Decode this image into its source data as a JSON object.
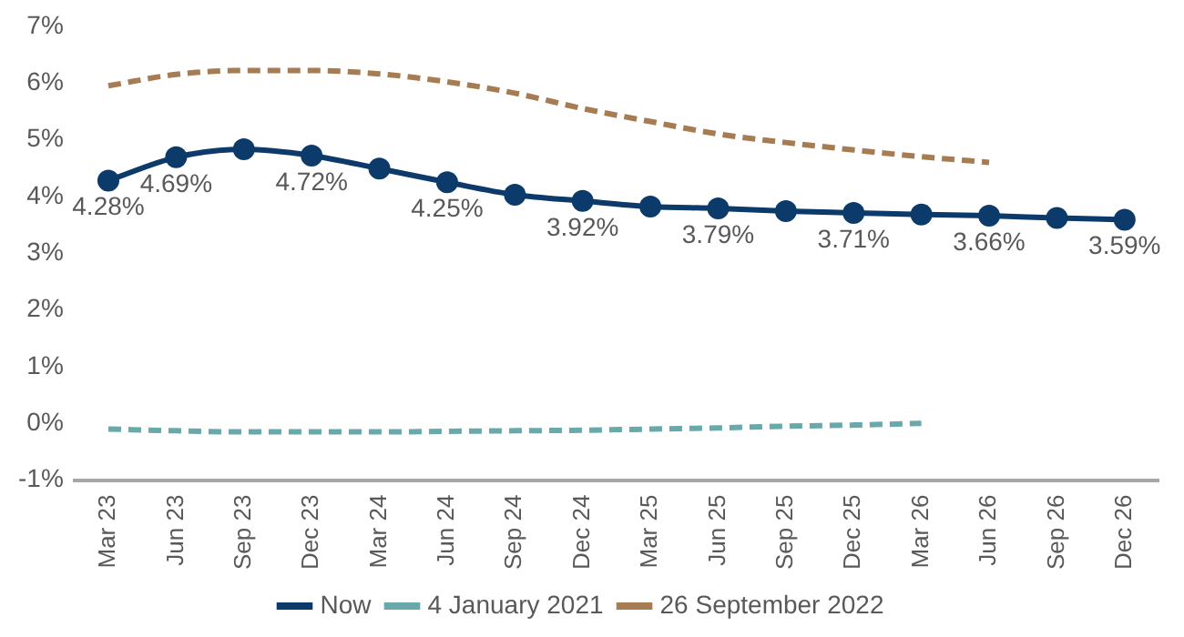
{
  "chart_data": {
    "type": "line",
    "categories": [
      "Mar 23",
      "Jun 23",
      "Sep 23",
      "Dec 23",
      "Mar 24",
      "Jun 24",
      "Sep 24",
      "Dec 24",
      "Mar 25",
      "Jun 25",
      "Sep 25",
      "Dec 25",
      "Mar 26",
      "Jun 26",
      "Sep 26",
      "Dec 26"
    ],
    "series": [
      {
        "name": "Now",
        "color": "#0b3a6b",
        "marker": "circle",
        "line_style": "solid",
        "values": [
          4.28,
          4.69,
          4.83,
          4.72,
          4.49,
          4.25,
          4.03,
          3.92,
          3.82,
          3.79,
          3.74,
          3.71,
          3.68,
          3.66,
          3.62,
          3.59
        ],
        "value_labels": [
          "4.28%",
          "4.69%",
          null,
          "4.72%",
          null,
          "4.25%",
          null,
          "3.92%",
          null,
          "3.79%",
          null,
          "3.71%",
          null,
          "3.66%",
          null,
          "3.59%"
        ]
      },
      {
        "name": "4 January 2021",
        "color": "#6aa9a9",
        "marker": "none",
        "line_style": "dashed",
        "values": [
          -0.1,
          -0.13,
          -0.15,
          -0.15,
          -0.15,
          -0.14,
          -0.13,
          -0.12,
          -0.1,
          -0.08,
          -0.05,
          -0.03,
          0.0,
          null,
          null,
          null
        ]
      },
      {
        "name": "26 September 2022",
        "color": "#a67c52",
        "marker": "none",
        "line_style": "dashed",
        "values": [
          5.95,
          6.15,
          6.22,
          6.22,
          6.16,
          6.02,
          5.82,
          5.55,
          5.32,
          5.1,
          4.95,
          4.82,
          4.7,
          4.6,
          null,
          null
        ]
      }
    ],
    "ylim": [
      -1,
      7
    ],
    "yticks": [
      {
        "value": -1,
        "label": "-1%"
      },
      {
        "value": 0,
        "label": "0%"
      },
      {
        "value": 1,
        "label": "1%"
      },
      {
        "value": 2,
        "label": "2%"
      },
      {
        "value": 3,
        "label": "3%"
      },
      {
        "value": 4,
        "label": "4%"
      },
      {
        "value": 5,
        "label": "5%"
      },
      {
        "value": 6,
        "label": "6%"
      },
      {
        "value": 7,
        "label": "7%"
      }
    ],
    "grid": false,
    "legend": "bottom"
  }
}
